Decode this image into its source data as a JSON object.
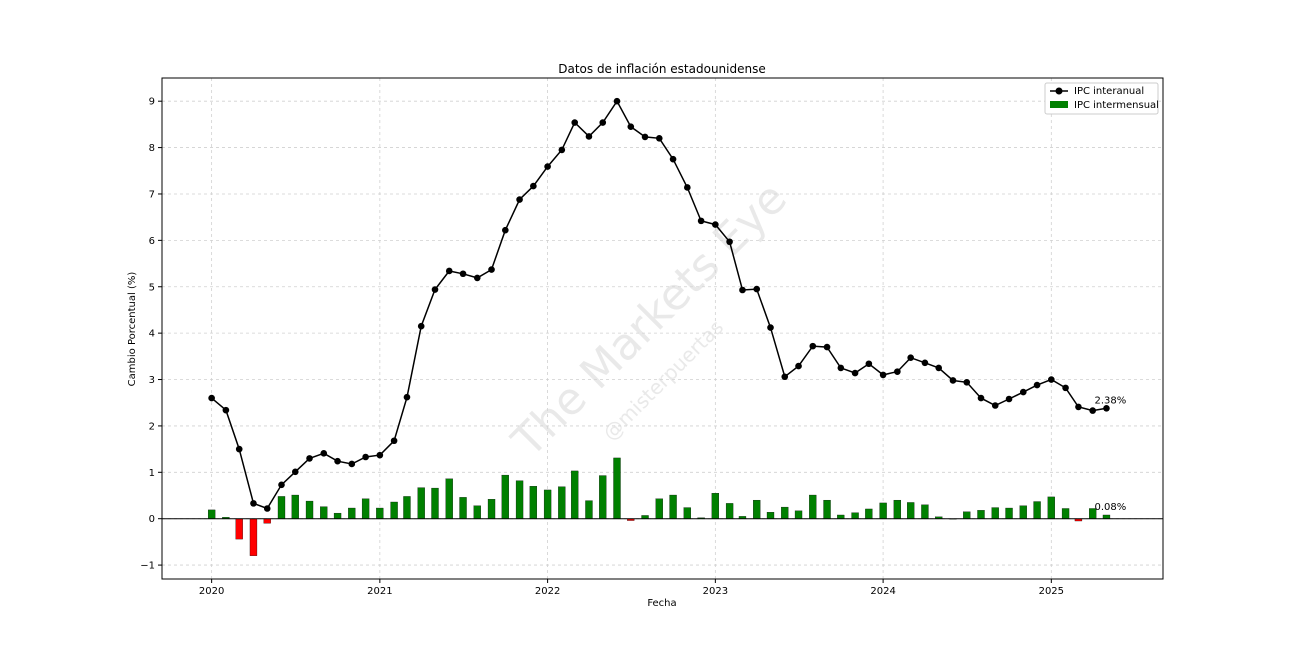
{
  "chart_data": {
    "type": "line+bar",
    "title": "Datos de inflación estadounidense",
    "xlabel": "Fecha",
    "ylabel": "Cambio Porcentual (%)",
    "xlim": [
      "2019-09-15",
      "2025-09-01"
    ],
    "ylim": [
      -1.3,
      9.5
    ],
    "x_ticks": [
      "2020",
      "2021",
      "2022",
      "2023",
      "2024",
      "2025"
    ],
    "y_ticks": [
      -1,
      0,
      1,
      2,
      3,
      4,
      5,
      6,
      7,
      8,
      9
    ],
    "grid": true,
    "legend_position": "upper right",
    "dates": [
      "2020-01",
      "2020-02",
      "2020-03",
      "2020-04",
      "2020-05",
      "2020-06",
      "2020-07",
      "2020-08",
      "2020-09",
      "2020-10",
      "2020-11",
      "2020-12",
      "2021-01",
      "2021-02",
      "2021-03",
      "2021-04",
      "2021-05",
      "2021-06",
      "2021-07",
      "2021-08",
      "2021-09",
      "2021-10",
      "2021-11",
      "2021-12",
      "2022-01",
      "2022-02",
      "2022-03",
      "2022-04",
      "2022-05",
      "2022-06",
      "2022-07",
      "2022-08",
      "2022-09",
      "2022-10",
      "2022-11",
      "2022-12",
      "2023-01",
      "2023-02",
      "2023-03",
      "2023-04",
      "2023-05",
      "2023-06",
      "2023-07",
      "2023-08",
      "2023-09",
      "2023-10",
      "2023-11",
      "2023-12",
      "2024-01",
      "2024-02",
      "2024-03",
      "2024-04",
      "2024-05",
      "2024-06",
      "2024-07",
      "2024-08",
      "2024-09",
      "2024-10",
      "2024-11",
      "2024-12",
      "2025-01",
      "2025-02",
      "2025-03",
      "2025-04",
      "2025-05"
    ],
    "series": [
      {
        "name": "IPC interanual",
        "type": "line",
        "color": "#000000",
        "values": [
          2.6,
          2.34,
          1.5,
          0.33,
          0.22,
          0.73,
          1.01,
          1.3,
          1.41,
          1.24,
          1.18,
          1.33,
          1.37,
          1.68,
          2.62,
          4.15,
          4.94,
          5.34,
          5.28,
          5.19,
          5.37,
          6.22,
          6.88,
          7.17,
          7.59,
          7.95,
          8.54,
          8.24,
          8.54,
          9.0,
          8.45,
          8.23,
          8.2,
          7.75,
          7.14,
          6.42,
          6.34,
          5.97,
          4.93,
          4.95,
          4.12,
          3.06,
          3.29,
          3.72,
          3.7,
          3.25,
          3.14,
          3.34,
          3.1,
          3.17,
          3.47,
          3.36,
          3.25,
          2.98,
          2.94,
          2.6,
          2.44,
          2.58,
          2.73,
          2.88,
          3.0,
          2.82,
          2.41,
          2.33,
          2.38
        ]
      },
      {
        "name": "IPC intermensual",
        "type": "bar",
        "color_positive": "#008000",
        "color_negative": "#ff0000",
        "values": [
          0.19,
          0.03,
          -0.44,
          -0.8,
          -0.1,
          0.48,
          0.51,
          0.38,
          0.26,
          0.12,
          0.23,
          0.43,
          0.23,
          0.36,
          0.48,
          0.67,
          0.66,
          0.86,
          0.46,
          0.28,
          0.42,
          0.94,
          0.82,
          0.7,
          0.62,
          0.69,
          1.03,
          0.39,
          0.93,
          1.31,
          -0.04,
          0.07,
          0.43,
          0.51,
          0.24,
          0.02,
          0.55,
          0.33,
          0.05,
          0.4,
          0.14,
          0.25,
          0.17,
          0.51,
          0.4,
          0.08,
          0.13,
          0.21,
          0.34,
          0.4,
          0.35,
          0.3,
          0.04,
          0.0,
          0.15,
          0.18,
          0.24,
          0.23,
          0.28,
          0.37,
          0.47,
          0.22,
          -0.05,
          0.22,
          0.08
        ]
      }
    ],
    "annotations": [
      {
        "text": "2.38%",
        "x": "2025-05",
        "y": 2.38
      },
      {
        "text": "0.08%",
        "x": "2025-05",
        "y": 0.08
      }
    ]
  },
  "watermark": {
    "main": "The Markets Eye",
    "sub": "@misterpuertas"
  }
}
